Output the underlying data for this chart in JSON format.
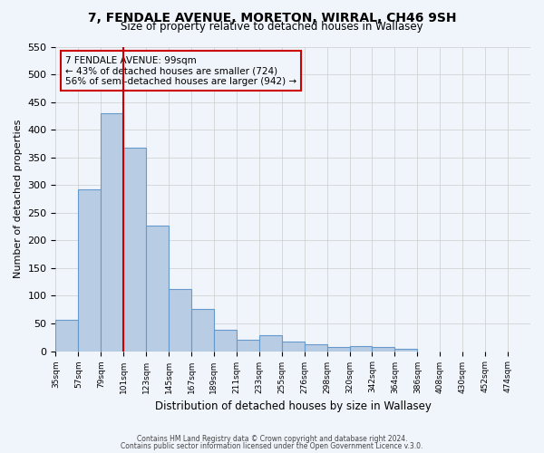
{
  "title": "7, FENDALE AVENUE, MORETON, WIRRAL, CH46 9SH",
  "subtitle": "Size of property relative to detached houses in Wallasey",
  "xlabel": "Distribution of detached houses by size in Wallasey",
  "ylabel": "Number of detached properties",
  "bar_values": [
    57,
    293,
    430,
    368,
    227,
    113,
    76,
    38,
    20,
    29,
    18,
    13,
    7,
    9,
    8,
    5
  ],
  "all_labels": [
    "35sqm",
    "57sqm",
    "79sqm",
    "101sqm",
    "123sqm",
    "145sqm",
    "167sqm",
    "189sqm",
    "211sqm",
    "233sqm",
    "255sqm",
    "276sqm",
    "298sqm",
    "320sqm",
    "342sqm",
    "364sqm",
    "386sqm",
    "408sqm",
    "430sqm",
    "452sqm",
    "474sqm"
  ],
  "bar_color": "#b8cce4",
  "bar_edge_color": "#6699cc",
  "grid_color": "#cccccc",
  "vline_x": 3,
  "vline_color": "#cc0000",
  "annotation_title": "7 FENDALE AVENUE: 99sqm",
  "annotation_line1": "← 43% of detached houses are smaller (724)",
  "annotation_line2": "56% of semi-detached houses are larger (942) →",
  "annotation_box_color": "#cc0000",
  "ylim": [
    0,
    550
  ],
  "yticks": [
    0,
    50,
    100,
    150,
    200,
    250,
    300,
    350,
    400,
    450,
    500,
    550
  ],
  "footer1": "Contains HM Land Registry data © Crown copyright and database right 2024.",
  "footer2": "Contains public sector information licensed under the Open Government Licence v.3.0.",
  "bg_color": "#f0f4fb"
}
